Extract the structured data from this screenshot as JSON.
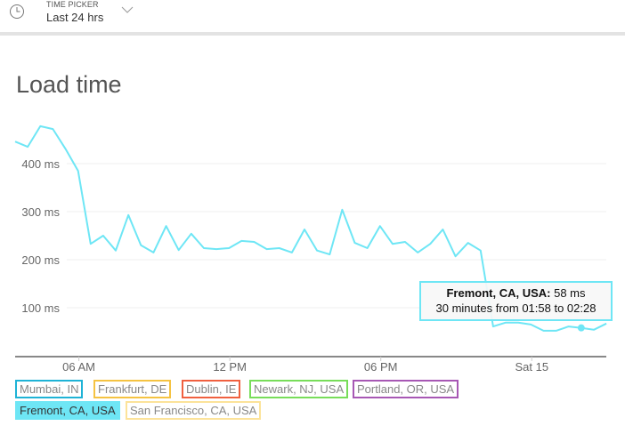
{
  "time_picker": {
    "label": "TIME PICKER",
    "value": "Last 24 hrs",
    "icon": "clock-icon",
    "dropdown_icon": "chevron-down-icon"
  },
  "chart_data": {
    "type": "line",
    "title": "Load time",
    "y_ticks": [
      "100 ms",
      "200 ms",
      "300 ms",
      "400 ms"
    ],
    "y_tick_values": [
      100,
      200,
      300,
      400
    ],
    "ylim": [
      0,
      480
    ],
    "x_ticks": [
      "06 AM",
      "12 PM",
      "06 PM",
      "Sat 15"
    ],
    "x_tick_hours": [
      6,
      12,
      18,
      24
    ],
    "grid": true,
    "interval_minutes": 30,
    "x": [
      "03:28",
      "03:58",
      "04:28",
      "04:58",
      "05:28",
      "05:58",
      "06:28",
      "06:58",
      "07:28",
      "07:58",
      "08:28",
      "08:58",
      "09:28",
      "09:58",
      "10:28",
      "10:58",
      "11:28",
      "11:58",
      "12:28",
      "12:58",
      "13:28",
      "13:58",
      "14:28",
      "14:58",
      "15:28",
      "15:58",
      "16:28",
      "16:58",
      "17:28",
      "17:58",
      "18:28",
      "18:58",
      "19:28",
      "19:58",
      "20:28",
      "20:58",
      "21:28",
      "21:58",
      "22:28",
      "22:58",
      "23:28",
      "23:58",
      "00:28",
      "00:58",
      "01:28",
      "01:58",
      "02:28",
      "02:58"
    ],
    "series": [
      {
        "name": "Fremont, CA, USA",
        "color": "#6ee6f5",
        "values": [
          446,
          435,
          478,
          472,
          431,
          385,
          233,
          250,
          219,
          293,
          230,
          215,
          270,
          220,
          254,
          224,
          222,
          224,
          239,
          237,
          222,
          224,
          215,
          263,
          219,
          211,
          304,
          235,
          224,
          270,
          233,
          237,
          215,
          233,
          263,
          207,
          235,
          219,
          61,
          69,
          69,
          65,
          52,
          52,
          61,
          58,
          54,
          67
        ]
      }
    ],
    "highlighted_index": 45,
    "tooltip": {
      "series": "Fremont, CA, USA:",
      "value": "58 ms",
      "range": "30 minutes from 01:58 to 02:28"
    },
    "legend": [
      {
        "label": "Mumbai, IN",
        "color": "#1fb3d6",
        "active": false
      },
      {
        "label": "Frankfurt, DE",
        "color": "#f5c342",
        "active": false
      },
      {
        "label": "Dublin, IE",
        "color": "#f0603f",
        "active": false
      },
      {
        "label": "Newark, NJ, USA",
        "color": "#78dd5a",
        "active": false
      },
      {
        "label": "Portland, OR, USA",
        "color": "#a758b4",
        "active": false
      },
      {
        "label": "Fremont, CA, USA",
        "color": "#6ee6f5",
        "active": true
      },
      {
        "label": "San Francisco, CA, USA",
        "color": "#fce39a",
        "active": false
      }
    ]
  }
}
